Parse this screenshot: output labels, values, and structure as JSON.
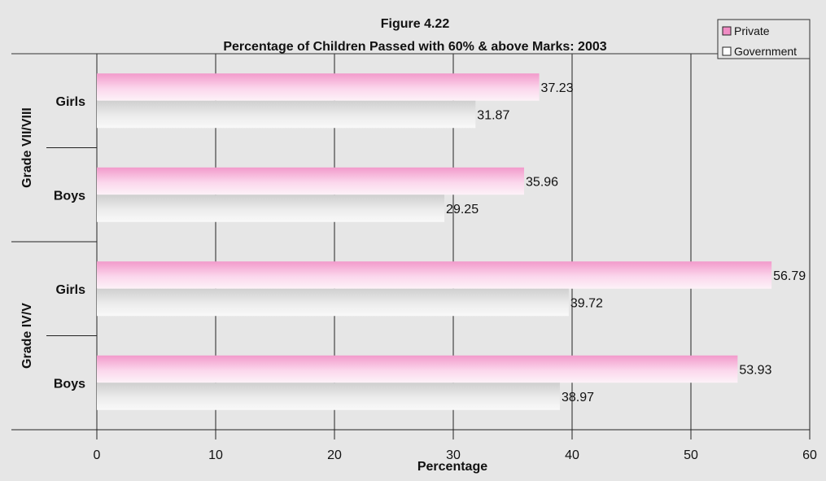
{
  "chart_data": {
    "type": "bar",
    "orientation": "horizontal",
    "title": "Figure 4.22",
    "subtitle": "Percentage of Children Passed with 60% & above Marks: 2003",
    "xlabel": "Percentage",
    "ylabel": "",
    "xlim": [
      0,
      60
    ],
    "xticks": [
      "0",
      "10",
      "20",
      "30",
      "40",
      "50",
      "60"
    ],
    "grid": true,
    "legend_position": "top-right",
    "groups": [
      {
        "label": "Grade VII/VIII",
        "categories": [
          "Girls",
          "Boys"
        ]
      },
      {
        "label": "Grade IV/V",
        "categories": [
          "Girls",
          "Boys"
        ]
      }
    ],
    "series": [
      {
        "name": "Private",
        "color": "#f08cc4",
        "values": [
          37.23,
          35.96,
          56.79,
          53.93
        ],
        "value_labels": [
          "37.23",
          "35.96",
          "56.79",
          "53.93"
        ]
      },
      {
        "name": "Government",
        "color": "#d4d4d4",
        "values": [
          31.87,
          29.25,
          39.72,
          38.97
        ],
        "value_labels": [
          "31.87",
          "29.25",
          "39.72",
          "38.97"
        ]
      }
    ]
  }
}
